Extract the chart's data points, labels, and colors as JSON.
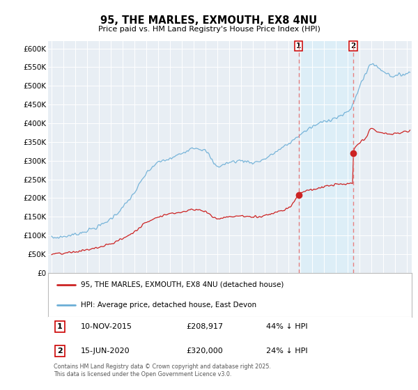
{
  "title": "95, THE MARLES, EXMOUTH, EX8 4NU",
  "subtitle": "Price paid vs. HM Land Registry's House Price Index (HPI)",
  "hpi_color": "#6baed6",
  "price_color": "#cc2222",
  "dashed_color": "#e88080",
  "shade_color": "#dceef8",
  "ylim": [
    0,
    620000
  ],
  "yticks": [
    0,
    50000,
    100000,
    150000,
    200000,
    250000,
    300000,
    350000,
    400000,
    450000,
    500000,
    550000,
    600000
  ],
  "ytick_labels": [
    "£0",
    "£50K",
    "£100K",
    "£150K",
    "£200K",
    "£250K",
    "£300K",
    "£350K",
    "£400K",
    "£450K",
    "£500K",
    "£550K",
    "£600K"
  ],
  "xlim_start": 1994.7,
  "xlim_end": 2025.4,
  "sale1_date": 2015.86,
  "sale1_price": 208917,
  "sale2_date": 2020.45,
  "sale2_price": 320000,
  "legend_line1": "95, THE MARLES, EXMOUTH, EX8 4NU (detached house)",
  "legend_line2": "HPI: Average price, detached house, East Devon",
  "table_row1": [
    "1",
    "10-NOV-2015",
    "£208,917",
    "44% ↓ HPI"
  ],
  "table_row2": [
    "2",
    "15-JUN-2020",
    "£320,000",
    "24% ↓ HPI"
  ],
  "footer": "Contains HM Land Registry data © Crown copyright and database right 2025.\nThis data is licensed under the Open Government Licence v3.0.",
  "background_color": "#e8eef4"
}
